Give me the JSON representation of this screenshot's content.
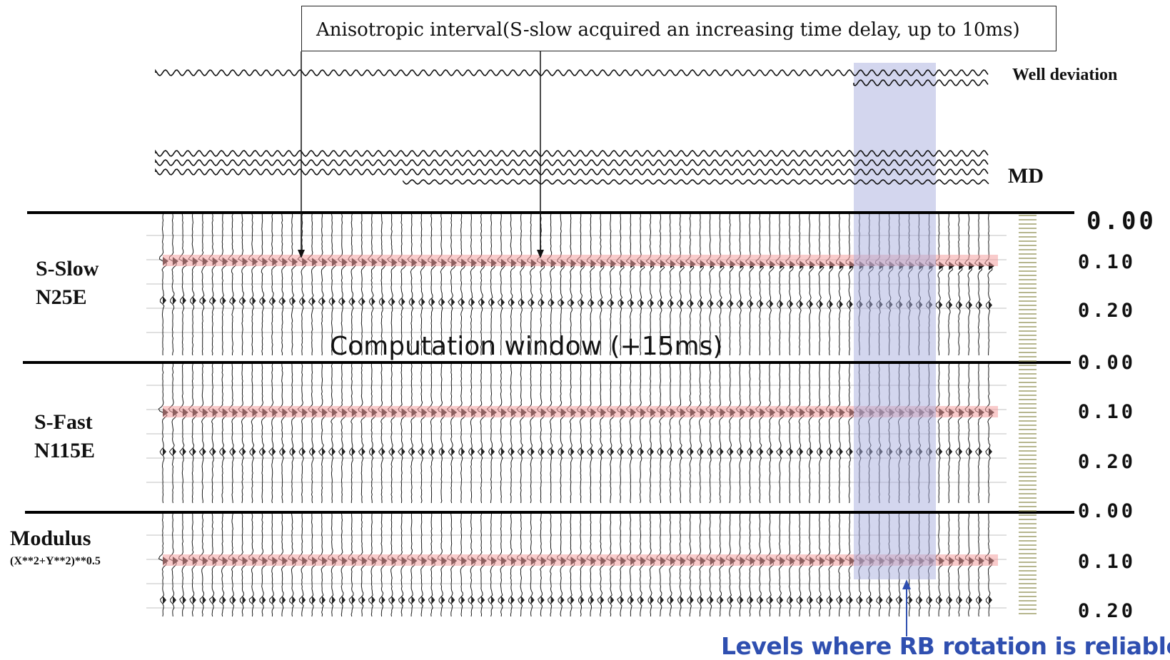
{
  "annotation_box": {
    "text": "Anisotropic interval(S-slow acquired an increasing time delay, up to 10ms)"
  },
  "headers": {
    "well_deviation": "Well deviation",
    "md": "MD"
  },
  "computation_window": "Computation window (+15ms)",
  "reliable_levels_label": "Levels where RB rotation is reliable",
  "panels": [
    {
      "name": "S-Slow",
      "azimuth": "N25E",
      "time_ticks": [
        "0.00",
        "0.10",
        "0.20"
      ]
    },
    {
      "name": "S-Fast",
      "azimuth": "N115E",
      "time_ticks": [
        "0.00",
        "0.10",
        "0.20"
      ]
    },
    {
      "name": "Modulus",
      "formula": "(X**2+Y**2)**0.5",
      "time_ticks": [
        "0.00",
        "0.10",
        "0.20"
      ]
    }
  ],
  "colors": {
    "trace": "#1a1a1a",
    "highlight_band": "#f4a0a0",
    "reliable_band": "#a8aedd",
    "rb_label": "#2f4fb0",
    "separator": "#000000"
  }
}
